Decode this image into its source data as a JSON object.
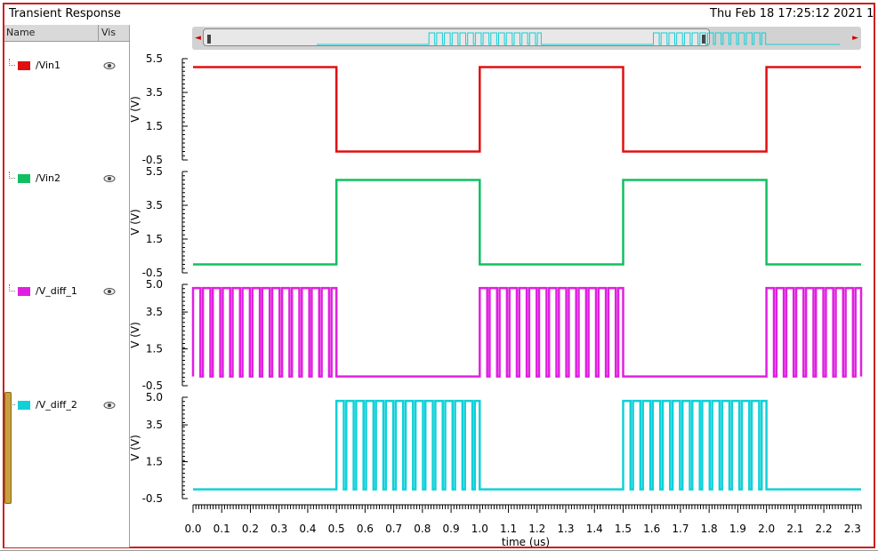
{
  "window": {
    "title": "Transient Response",
    "timestamp": "Thu Feb 18 17:25:12 2021  1"
  },
  "panel": {
    "name_header": "Name",
    "vis_header": "Vis"
  },
  "signals": [
    {
      "label": "/Vin1",
      "color": "#e01010",
      "visibility_icon": "eye-icon"
    },
    {
      "label": "/Vin2",
      "color": "#10c060",
      "visibility_icon": "eye-icon"
    },
    {
      "label": "/V_diff_1",
      "color": "#e020e0",
      "visibility_icon": "eye-icon"
    },
    {
      "label": "/V_diff_2",
      "color": "#10d0d8",
      "visibility_icon": "eye-icon"
    }
  ],
  "scrollbar": {
    "left_arrow": "◄",
    "right_arrow": "►"
  },
  "chart_data": {
    "type": "line",
    "xlabel": "time (us)",
    "xlim": [
      0,
      2.33
    ],
    "x_ticks": [
      "0.0",
      "0.1",
      "0.2",
      "0.3",
      "0.4",
      "0.5",
      "0.6",
      "0.7",
      "0.8",
      "0.9",
      "1.0",
      "1.1",
      "1.2",
      "1.3",
      "1.4",
      "1.5",
      "1.6",
      "1.7",
      "1.8",
      "1.9",
      "2.0",
      "2.1",
      "2.2",
      "2.3"
    ],
    "panels": [
      {
        "series": "/Vin1",
        "ylabel": "V (V)",
        "y_ticks": [
          "5.5",
          "3.5",
          "1.5",
          "-0.5"
        ],
        "ylim": [
          -0.5,
          5.5
        ],
        "low": 0,
        "high": 5,
        "segments": [
          [
            0,
            0.5,
            "high"
          ],
          [
            0.5,
            1.0,
            "low"
          ],
          [
            1.0,
            1.5,
            "high"
          ],
          [
            1.5,
            2.0,
            "low"
          ],
          [
            2.0,
            2.33,
            "high"
          ]
        ]
      },
      {
        "series": "/Vin2",
        "ylabel": "V (V)",
        "y_ticks": [
          "5.5",
          "3.5",
          "1.5",
          "-0.5"
        ],
        "ylim": [
          -0.5,
          5.5
        ],
        "low": 0,
        "high": 5,
        "segments": [
          [
            0,
            0.5,
            "low"
          ],
          [
            0.5,
            1.0,
            "high"
          ],
          [
            1.0,
            1.5,
            "low"
          ],
          [
            1.5,
            2.0,
            "high"
          ],
          [
            2.0,
            2.33,
            "low"
          ]
        ]
      },
      {
        "series": "/V_diff_1",
        "ylabel": "V (V)",
        "y_ticks": [
          "5.0",
          "3.5",
          "1.5",
          "-0.5"
        ],
        "ylim": [
          -0.5,
          5.0
        ],
        "low": 0,
        "high": 4.8,
        "segments": [
          [
            0,
            0.5,
            "pulse"
          ],
          [
            0.5,
            1.0,
            "low"
          ],
          [
            1.0,
            1.5,
            "pulse"
          ],
          [
            1.5,
            2.0,
            "low"
          ],
          [
            2.0,
            2.33,
            "pulse"
          ]
        ]
      },
      {
        "series": "/V_diff_2",
        "ylabel": "V (V)",
        "y_ticks": [
          "5.0",
          "3.5",
          "1.5",
          "-0.5"
        ],
        "ylim": [
          -0.5,
          5.0
        ],
        "low": 0,
        "high": 4.8,
        "segments": [
          [
            0,
            0.5,
            "low"
          ],
          [
            0.5,
            1.0,
            "pulse"
          ],
          [
            1.0,
            1.5,
            "low"
          ],
          [
            1.5,
            2.0,
            "pulse"
          ],
          [
            2.0,
            2.33,
            "low"
          ]
        ]
      }
    ],
    "pulse_period_us": 0.0345,
    "grid": false,
    "legend": "left-panel"
  }
}
